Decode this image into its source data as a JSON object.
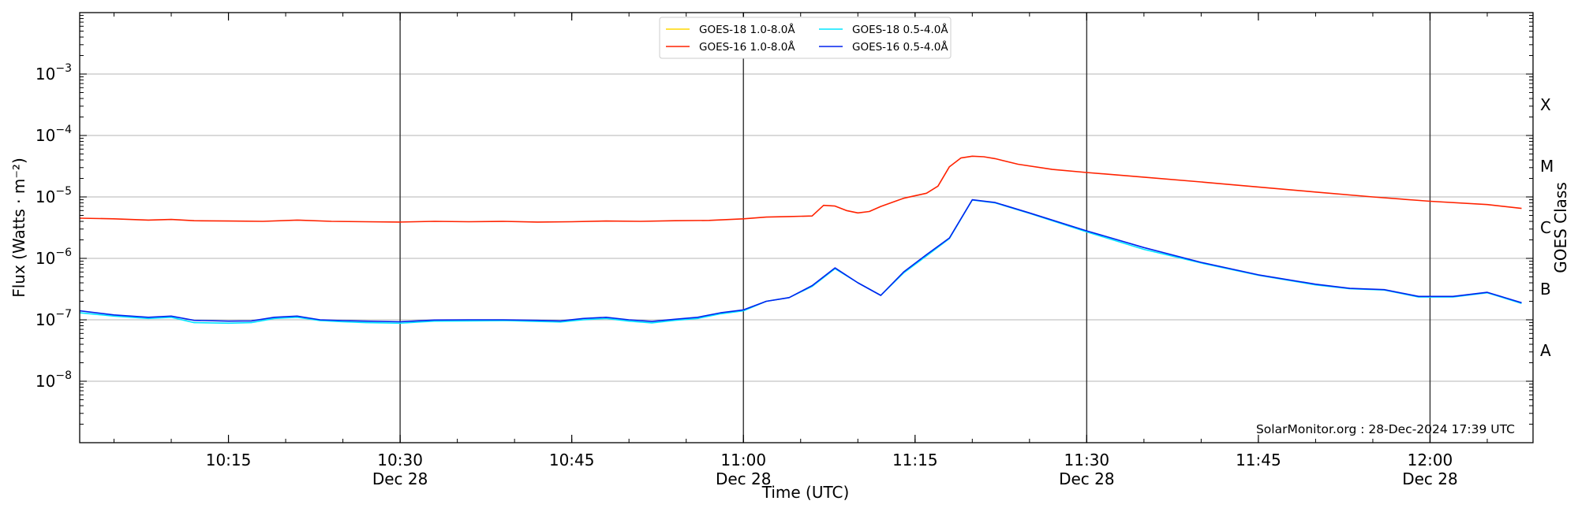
{
  "chart_data": {
    "type": "line",
    "title": "",
    "xlabel": "Time (UTC)",
    "ylabel": "Flux (Watts · m⁻²)",
    "ylabel_right": "GOES Class",
    "y_scale": "log",
    "ylim": [
      1e-09,
      0.01
    ],
    "xlim": [
      "2024-12-28 10:02",
      "2024-12-28 12:09"
    ],
    "x_ticks": [
      {
        "t": "10:15",
        "date": ""
      },
      {
        "t": "10:30",
        "date": "Dec 28"
      },
      {
        "t": "10:45",
        "date": ""
      },
      {
        "t": "11:00",
        "date": "Dec 28"
      },
      {
        "t": "11:15",
        "date": ""
      },
      {
        "t": "11:30",
        "date": "Dec 28"
      },
      {
        "t": "11:45",
        "date": ""
      },
      {
        "t": "12:00",
        "date": "Dec 28"
      }
    ],
    "y_ticks": [
      {
        "value": 1e-08,
        "label": "10",
        "exp": "−8"
      },
      {
        "value": 1e-07,
        "label": "10",
        "exp": "−7"
      },
      {
        "value": 1e-06,
        "label": "10",
        "exp": "−6"
      },
      {
        "value": 1e-05,
        "label": "10",
        "exp": "−5"
      },
      {
        "value": 0.0001,
        "label": "10",
        "exp": "−4"
      },
      {
        "value": 0.001,
        "label": "10",
        "exp": "−3"
      }
    ],
    "goes_classes": [
      {
        "label": "A",
        "value": 3.16e-08
      },
      {
        "label": "B",
        "value": 3.16e-07
      },
      {
        "label": "C",
        "value": 3.16e-06
      },
      {
        "label": "M",
        "value": 3.16e-05
      },
      {
        "label": "X",
        "value": 0.000316
      }
    ],
    "grid": "horizontal at decades",
    "vertical_lines": [
      "10:30",
      "11:00",
      "11:30",
      "12:00"
    ],
    "legend_placement": "top-center",
    "annotation": "SolarMonitor.org : 28-Dec-2024 17:39 UTC",
    "series": [
      {
        "name": "GOES-18 1.0-8.0Å",
        "color": "#ffd700",
        "x": [],
        "values": []
      },
      {
        "name": "GOES-18 0.5-4.0Å",
        "color": "#00e5ff",
        "x": [
          "10:02",
          "10:05",
          "10:08",
          "10:10",
          "10:12",
          "10:15",
          "10:17",
          "10:19",
          "10:21",
          "10:23",
          "10:25",
          "10:27",
          "10:30",
          "10:33",
          "10:36",
          "10:39",
          "10:42",
          "10:44",
          "10:46",
          "10:48",
          "10:50",
          "10:52",
          "10:54",
          "10:56",
          "10:58",
          "11:00",
          "11:02",
          "11:04",
          "11:06",
          "11:08",
          "11:10",
          "11:12",
          "11:14",
          "11:16",
          "11:18",
          "11:20",
          "11:22",
          "11:25",
          "11:30",
          "11:35",
          "11:40",
          "11:45",
          "11:50",
          "11:53",
          "11:56",
          "11:59",
          "12:02",
          "12:05",
          "12:08"
        ],
        "values": [
          1.3e-07,
          1.15e-07,
          1.05e-07,
          1.1e-07,
          9e-08,
          8.8e-08,
          9e-08,
          1.05e-07,
          1.1e-07,
          9.7e-08,
          9.3e-08,
          9e-08,
          8.8e-08,
          9.5e-08,
          9.6e-08,
          9.7e-08,
          9.4e-08,
          9.2e-08,
          1e-07,
          1.05e-07,
          9.5e-08,
          8.9e-08,
          9.8e-08,
          1.05e-07,
          1.25e-07,
          1.4e-07,
          2e-07,
          2.3e-07,
          3.5e-07,
          6.8e-07,
          4e-07,
          2.5e-07,
          5.8e-07,
          1.1e-06,
          2.1e-06,
          8.9e-06,
          8e-06,
          5.4e-06,
          2.7e-06,
          1.4e-06,
          8.4e-07,
          5.3e-07,
          3.7e-07,
          3.2e-07,
          3.05e-07,
          2.35e-07,
          2.35e-07,
          2.75e-07,
          1.85e-07
        ]
      },
      {
        "name": "GOES-16 1.0-8.0Å",
        "color": "#ff2200",
        "x": [
          "10:02",
          "10:05",
          "10:08",
          "10:10",
          "10:12",
          "10:15",
          "10:18",
          "10:21",
          "10:24",
          "10:27",
          "10:30",
          "10:33",
          "10:36",
          "10:39",
          "10:42",
          "10:45",
          "10:48",
          "10:51",
          "10:54",
          "10:57",
          "11:00",
          "11:02",
          "11:04",
          "11:06",
          "11:07",
          "11:08",
          "11:09",
          "11:10",
          "11:11",
          "11:12",
          "11:14",
          "11:16",
          "11:17",
          "11:18",
          "11:19",
          "11:20",
          "11:21",
          "11:22",
          "11:24",
          "11:27",
          "11:30",
          "11:35",
          "11:40",
          "11:45",
          "11:50",
          "11:55",
          "12:00",
          "12:05",
          "12:08"
        ],
        "values": [
          4.5e-06,
          4.4e-06,
          4.2e-06,
          4.3e-06,
          4.1e-06,
          4.05e-06,
          4e-06,
          4.2e-06,
          4e-06,
          3.95e-06,
          3.9e-06,
          4e-06,
          3.95e-06,
          4e-06,
          3.9e-06,
          3.95e-06,
          4.05e-06,
          4e-06,
          4.1e-06,
          4.15e-06,
          4.4e-06,
          4.7e-06,
          4.8e-06,
          4.9e-06,
          7.3e-06,
          7.1e-06,
          6e-06,
          5.5e-06,
          5.8e-06,
          7e-06,
          9.5e-06,
          1.15e-05,
          1.5e-05,
          3.1e-05,
          4.3e-05,
          4.6e-05,
          4.5e-05,
          4.2e-05,
          3.4e-05,
          2.8e-05,
          2.5e-05,
          2.1e-05,
          1.75e-05,
          1.45e-05,
          1.2e-05,
          1e-05,
          8.5e-06,
          7.5e-06,
          6.5e-06
        ]
      },
      {
        "name": "GOES-16 0.5-4.0Å",
        "color": "#0022ee",
        "x": [
          "10:02",
          "10:05",
          "10:08",
          "10:10",
          "10:12",
          "10:15",
          "10:17",
          "10:19",
          "10:21",
          "10:23",
          "10:25",
          "10:27",
          "10:30",
          "10:33",
          "10:36",
          "10:39",
          "10:42",
          "10:44",
          "10:46",
          "10:48",
          "10:50",
          "10:52",
          "10:54",
          "10:56",
          "10:58",
          "11:00",
          "11:02",
          "11:04",
          "11:06",
          "11:08",
          "11:10",
          "11:12",
          "11:14",
          "11:16",
          "11:18",
          "11:20",
          "11:22",
          "11:25",
          "11:30",
          "11:35",
          "11:40",
          "11:45",
          "11:50",
          "11:53",
          "11:56",
          "11:59",
          "12:02",
          "12:05",
          "12:08"
        ],
        "values": [
          1.4e-07,
          1.2e-07,
          1.1e-07,
          1.15e-07,
          9.8e-08,
          9.5e-08,
          9.6e-08,
          1.1e-07,
          1.15e-07,
          1e-07,
          9.7e-08,
          9.5e-08,
          9.3e-08,
          9.9e-08,
          1e-07,
          1e-07,
          9.8e-08,
          9.6e-08,
          1.05e-07,
          1.1e-07,
          1e-07,
          9.4e-08,
          1.02e-07,
          1.1e-07,
          1.3e-07,
          1.45e-07,
          2e-07,
          2.3e-07,
          3.6e-07,
          7e-07,
          4e-07,
          2.5e-07,
          6e-07,
          1.15e-06,
          2.15e-06,
          9e-06,
          8.1e-06,
          5.5e-06,
          2.8e-06,
          1.5e-06,
          8.6e-07,
          5.4e-07,
          3.8e-07,
          3.25e-07,
          3.1e-07,
          2.4e-07,
          2.4e-07,
          2.8e-07,
          1.9e-07
        ]
      }
    ]
  }
}
